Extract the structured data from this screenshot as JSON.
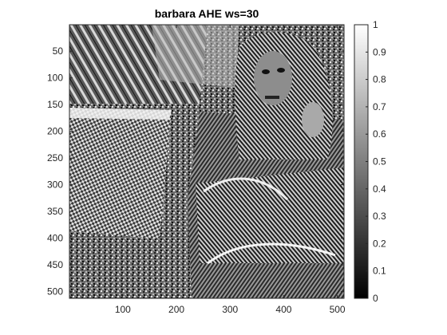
{
  "figure": {
    "title": "barbara AHE ws=30"
  },
  "chart_data": {
    "type": "heatmap",
    "title": "barbara AHE ws=30",
    "xlabel": "",
    "ylabel": "",
    "colormap": "gray",
    "image_size": [
      512,
      512
    ],
    "xlim": [
      0.5,
      512.5
    ],
    "ylim": [
      0.5,
      512.5
    ],
    "y_direction": "reverse",
    "x_ticks": [
      100,
      200,
      300,
      400,
      500
    ],
    "y_ticks": [
      50,
      100,
      150,
      200,
      250,
      300,
      350,
      400,
      450,
      500
    ],
    "colorbar": {
      "range": [
        0,
        1
      ],
      "ticks": [
        0,
        0.1,
        0.2,
        0.3,
        0.4,
        0.5,
        0.6,
        0.7,
        0.8,
        0.9,
        1
      ],
      "tick_labels": [
        "0",
        "0.1",
        "0.2",
        "0.3",
        "0.4",
        "0.5",
        "0.6",
        "0.7",
        "0.8",
        "0.9",
        "1"
      ]
    },
    "image_content": "Adaptive histogram equalized grayscale photograph (barbara test image): woman in striped headscarf and clothing seated beside a table with checkered tablecloth, bookshelf in background",
    "grid": false,
    "legend": "none",
    "colors": {
      "axes": "#262626",
      "background": "#ffffff",
      "colormap_low": "#000000",
      "colormap_high": "#ffffff"
    }
  }
}
